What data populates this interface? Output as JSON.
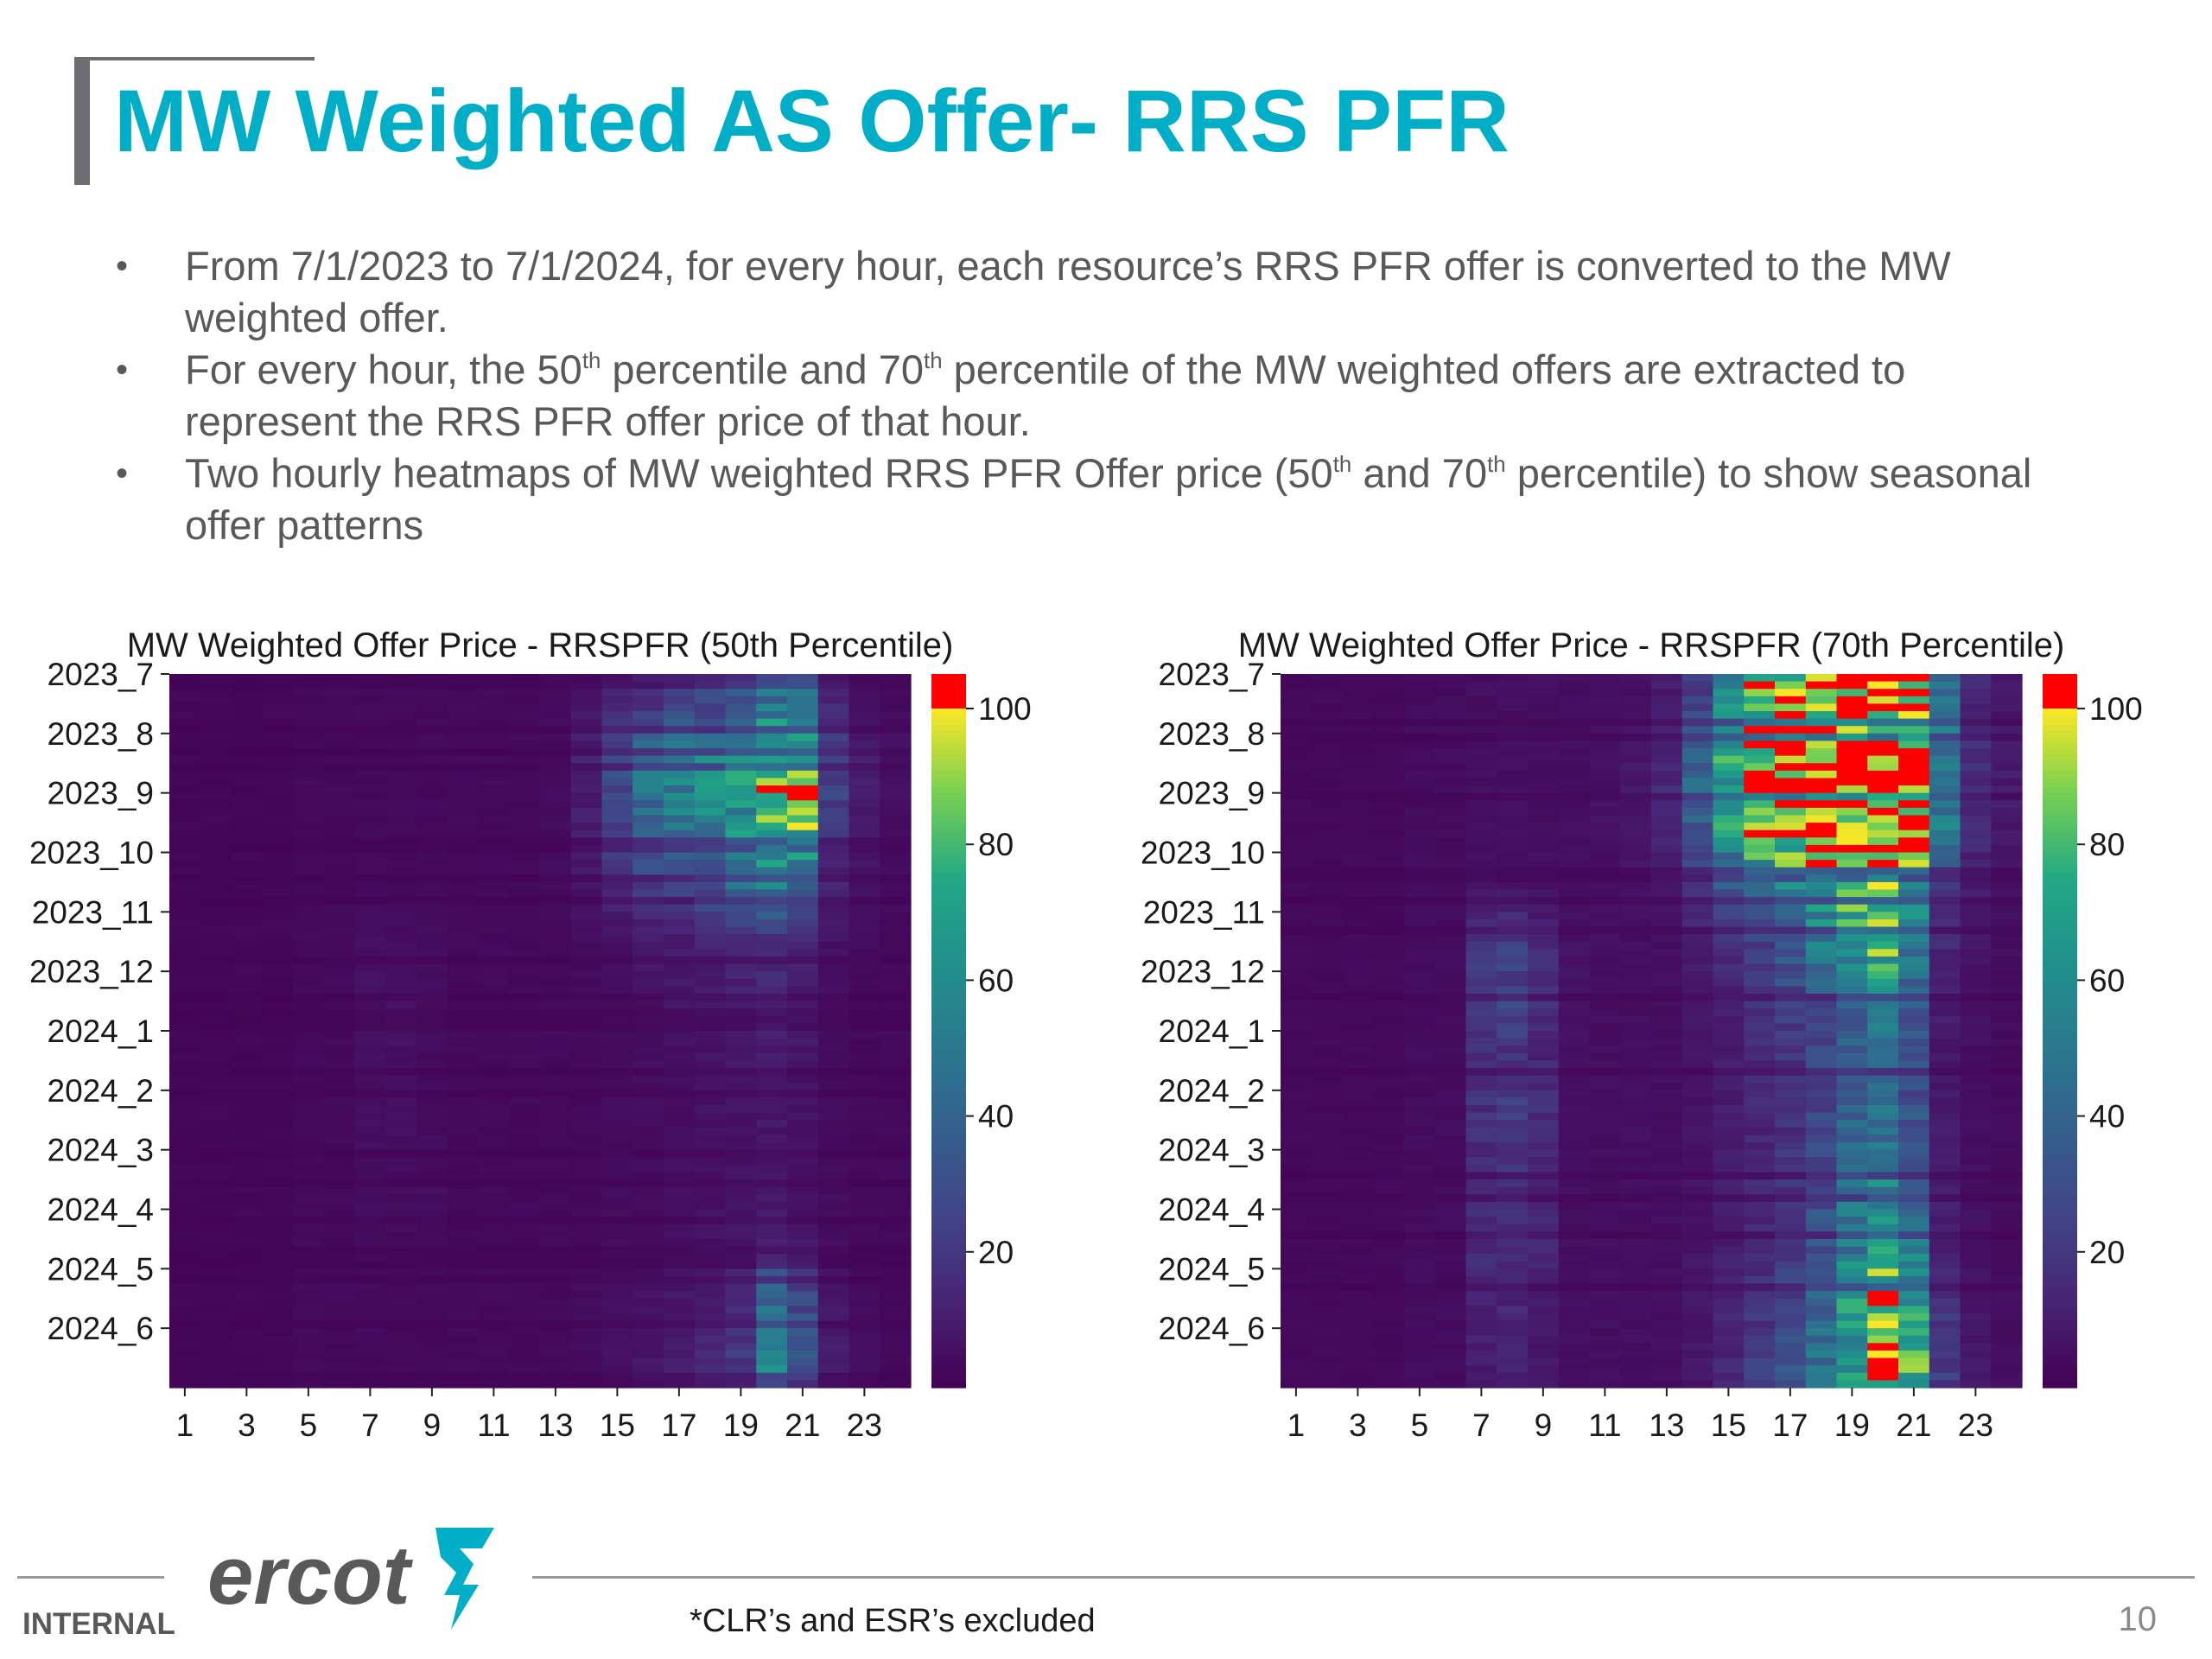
{
  "slide": {
    "title": "MW Weighted AS Offer- RRS PFR",
    "bullets": [
      [
        "From 7/1/2023 to 7/1/2024, for every hour, each resource’s RRS PFR offer is converted to the MW weighted offer."
      ],
      [
        "For every hour, the 50",
        "th",
        " percentile and 70",
        "th",
        " percentile of the MW weighted offers are extracted to represent the RRS PFR offer price of that hour."
      ],
      [
        "Two hourly heatmaps of MW weighted RRS PFR Offer price (50",
        "th",
        " and 70",
        "th",
        " percentile) to show seasonal offer patterns"
      ]
    ]
  },
  "footer": {
    "internal_label": "INTERNAL",
    "footnote": "*CLR’s and ESR’s excluded",
    "page_number": "10",
    "logo_text": "ercot"
  },
  "colors": {
    "title": "#00aec7",
    "text": "#595959",
    "overflow": "#ff0000"
  },
  "chart_data": [
    {
      "type": "heatmap",
      "title": "MW Weighted Offer Price - RRSPFR (50th Percentile)",
      "x": [
        1,
        2,
        3,
        4,
        5,
        6,
        7,
        8,
        9,
        10,
        11,
        12,
        13,
        14,
        15,
        16,
        17,
        18,
        19,
        20,
        21,
        22,
        23,
        24
      ],
      "x_tick_labels": [
        "1",
        "3",
        "5",
        "7",
        "9",
        "11",
        "13",
        "15",
        "17",
        "19",
        "21",
        "23"
      ],
      "y": [
        "2023_7",
        "2023_8",
        "2023_9",
        "2023_10",
        "2023_11",
        "2023_12",
        "2024_1",
        "2024_2",
        "2024_3",
        "2024_4",
        "2024_5",
        "2024_6"
      ],
      "colorbar": {
        "min": 0,
        "max": 100,
        "ticks": [
          20,
          40,
          60,
          80,
          100
        ],
        "colormap": "viridis",
        "over_color": "red"
      },
      "values": [
        [
          2,
          2,
          2,
          2,
          3,
          3,
          3,
          3,
          3,
          3,
          3,
          3,
          4,
          7,
          12,
          16,
          20,
          24,
          32,
          46,
          44,
          14,
          6,
          4
        ],
        [
          2,
          2,
          2,
          2,
          3,
          3,
          3,
          3,
          3,
          3,
          3,
          3,
          4,
          12,
          28,
          50,
          58,
          60,
          70,
          92,
          90,
          26,
          10,
          6
        ],
        [
          2,
          2,
          2,
          2,
          3,
          3,
          3,
          3,
          3,
          3,
          3,
          3,
          4,
          10,
          24,
          42,
          48,
          52,
          62,
          86,
          84,
          22,
          9,
          5
        ],
        [
          2,
          2,
          2,
          2,
          3,
          3,
          3,
          3,
          3,
          3,
          3,
          3,
          4,
          7,
          14,
          22,
          26,
          32,
          42,
          56,
          48,
          12,
          6,
          4
        ],
        [
          2,
          2,
          2,
          2,
          3,
          3,
          5,
          5,
          4,
          3,
          3,
          3,
          3,
          4,
          6,
          8,
          10,
          12,
          14,
          16,
          12,
          6,
          4,
          3
        ],
        [
          2,
          2,
          2,
          2,
          3,
          3,
          6,
          6,
          5,
          3,
          3,
          3,
          3,
          4,
          5,
          6,
          8,
          9,
          10,
          12,
          10,
          5,
          3,
          3
        ],
        [
          2,
          2,
          2,
          2,
          3,
          3,
          5,
          5,
          4,
          3,
          3,
          3,
          3,
          3,
          4,
          5,
          6,
          7,
          8,
          10,
          8,
          4,
          3,
          3
        ],
        [
          2,
          2,
          2,
          2,
          3,
          3,
          5,
          5,
          4,
          3,
          3,
          3,
          3,
          3,
          4,
          4,
          5,
          6,
          7,
          8,
          6,
          4,
          3,
          3
        ],
        [
          2,
          2,
          2,
          2,
          3,
          3,
          4,
          4,
          4,
          3,
          3,
          3,
          3,
          3,
          4,
          4,
          5,
          6,
          7,
          8,
          6,
          4,
          3,
          3
        ],
        [
          2,
          2,
          2,
          2,
          3,
          3,
          4,
          4,
          4,
          3,
          3,
          3,
          3,
          3,
          4,
          4,
          5,
          6,
          8,
          10,
          8,
          4,
          3,
          3
        ],
        [
          2,
          2,
          2,
          2,
          3,
          3,
          3,
          3,
          3,
          3,
          3,
          3,
          3,
          4,
          5,
          6,
          8,
          10,
          14,
          40,
          26,
          8,
          4,
          3
        ],
        [
          2,
          2,
          2,
          2,
          3,
          3,
          3,
          3,
          3,
          3,
          3,
          3,
          3,
          4,
          6,
          8,
          10,
          14,
          20,
          56,
          34,
          10,
          5,
          3
        ]
      ]
    },
    {
      "type": "heatmap",
      "title": "MW Weighted Offer Price - RRSPFR (70th Percentile)",
      "x": [
        1,
        2,
        3,
        4,
        5,
        6,
        7,
        8,
        9,
        10,
        11,
        12,
        13,
        14,
        15,
        16,
        17,
        18,
        19,
        20,
        21,
        22,
        23,
        24
      ],
      "x_tick_labels": [
        "1",
        "3",
        "5",
        "7",
        "9",
        "11",
        "13",
        "15",
        "17",
        "19",
        "21",
        "23"
      ],
      "y": [
        "2023_7",
        "2023_8",
        "2023_9",
        "2023_10",
        "2023_11",
        "2023_12",
        "2024_1",
        "2024_2",
        "2024_3",
        "2024_4",
        "2024_5",
        "2024_6"
      ],
      "colorbar": {
        "min": 0,
        "max": 100,
        "ticks": [
          20,
          40,
          60,
          80,
          100
        ],
        "colormap": "viridis",
        "over_color": "red"
      },
      "values": [
        [
          3,
          3,
          3,
          3,
          4,
          4,
          5,
          5,
          5,
          5,
          5,
          6,
          10,
          24,
          60,
          82,
          92,
          100,
          100,
          100,
          98,
          44,
          14,
          8
        ],
        [
          3,
          3,
          3,
          3,
          4,
          4,
          5,
          5,
          5,
          5,
          6,
          8,
          14,
          40,
          72,
          100,
          110,
          110,
          110,
          110,
          110,
          56,
          18,
          10
        ],
        [
          3,
          3,
          3,
          3,
          4,
          4,
          5,
          5,
          5,
          5,
          6,
          8,
          14,
          36,
          70,
          100,
          110,
          110,
          110,
          110,
          108,
          52,
          16,
          9
        ],
        [
          3,
          3,
          3,
          3,
          4,
          4,
          6,
          6,
          5,
          5,
          5,
          6,
          10,
          20,
          36,
          50,
          60,
          68,
          80,
          84,
          62,
          24,
          10,
          6
        ],
        [
          3,
          3,
          3,
          3,
          4,
          4,
          18,
          22,
          16,
          6,
          5,
          5,
          6,
          10,
          16,
          24,
          36,
          52,
          72,
          80,
          56,
          14,
          7,
          5
        ],
        [
          3,
          3,
          3,
          3,
          4,
          4,
          20,
          24,
          18,
          6,
          5,
          5,
          5,
          8,
          12,
          18,
          24,
          32,
          44,
          52,
          36,
          10,
          6,
          4
        ],
        [
          3,
          3,
          3,
          3,
          4,
          4,
          16,
          18,
          14,
          5,
          5,
          5,
          5,
          7,
          10,
          14,
          18,
          24,
          32,
          40,
          28,
          8,
          5,
          4
        ],
        [
          3,
          3,
          3,
          3,
          4,
          4,
          18,
          22,
          16,
          5,
          5,
          5,
          5,
          7,
          10,
          14,
          18,
          26,
          38,
          48,
          32,
          9,
          5,
          4
        ],
        [
          3,
          3,
          3,
          3,
          4,
          4,
          14,
          16,
          12,
          5,
          5,
          5,
          5,
          7,
          10,
          14,
          18,
          28,
          42,
          54,
          38,
          10,
          5,
          4
        ],
        [
          3,
          3,
          3,
          3,
          4,
          4,
          16,
          18,
          14,
          5,
          5,
          5,
          5,
          7,
          10,
          14,
          20,
          32,
          50,
          64,
          44,
          12,
          6,
          4
        ],
        [
          3,
          3,
          3,
          3,
          4,
          4,
          12,
          14,
          10,
          5,
          5,
          5,
          5,
          8,
          12,
          18,
          26,
          40,
          64,
          86,
          66,
          18,
          7,
          5
        ],
        [
          3,
          3,
          3,
          3,
          4,
          4,
          10,
          12,
          9,
          5,
          5,
          5,
          5,
          8,
          14,
          22,
          30,
          46,
          70,
          92,
          76,
          22,
          8,
          5
        ]
      ]
    }
  ]
}
